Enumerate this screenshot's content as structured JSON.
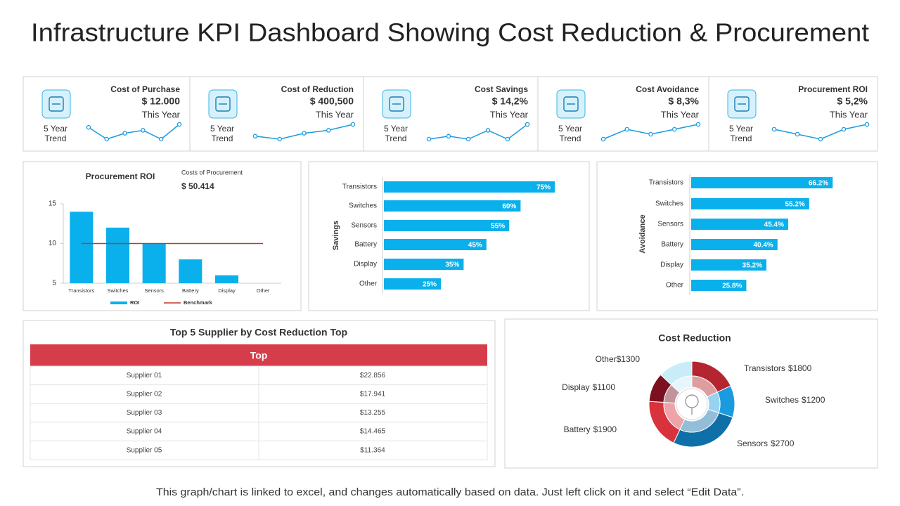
{
  "title": "Infrastructure KPI Dashboard Showing Cost Reduction & Procurement",
  "kpis": [
    {
      "name": "Cost of Purchase",
      "value": "$ 12.000",
      "period": "This Year",
      "trend_label": "5 Year Trend",
      "trend": [
        6,
        2,
        4,
        5,
        2,
        7
      ]
    },
    {
      "name": "Cost of Reduction",
      "value": "$ 400,500",
      "period": "This Year",
      "trend_label": "5 Year Trend",
      "trend": [
        3,
        2,
        4,
        5,
        7
      ]
    },
    {
      "name": "Cost Savings",
      "value": "$ 14,2%",
      "period": "This Year",
      "trend_label": "5 Year Trend",
      "trend": [
        3,
        4,
        3,
        6,
        3,
        8
      ]
    },
    {
      "name": "Cost Avoidance",
      "value": "$ 8,3%",
      "period": "This Year",
      "trend_label": "5 Year Trend",
      "trend": [
        2,
        6,
        4,
        6,
        8
      ]
    },
    {
      "name": "Procurement ROI",
      "value": "$ 5,2%",
      "period": "This Year",
      "trend_label": "5 Year Trend",
      "trend": [
        5,
        4,
        3,
        5,
        6
      ]
    }
  ],
  "chart_data": [
    {
      "type": "bar",
      "title": "Procurement ROI",
      "subtitle": "Costs of Procurement",
      "annotation": "$ 50.414",
      "categories": [
        "Transistors",
        "Switches",
        "Sensors",
        "Battery",
        "Display",
        "Other"
      ],
      "series": [
        {
          "name": "ROI",
          "color": "#0ab0ec",
          "values": [
            14,
            12,
            10,
            8,
            6,
            null
          ]
        },
        {
          "name": "Benchmark",
          "type": "line",
          "color": "#c0392b",
          "values": [
            10,
            10,
            10,
            10,
            10,
            10
          ]
        }
      ],
      "ylim": [
        5,
        15
      ],
      "yticks": [
        5,
        10,
        15
      ],
      "legend": "bottom"
    },
    {
      "type": "hbar",
      "ylabel": "Savings",
      "categories": [
        "Transistors",
        "Switches",
        "Sensors",
        "Battery",
        "Display",
        "Other"
      ],
      "values": [
        75,
        60,
        55,
        45,
        35,
        25
      ],
      "value_labels": [
        "75%",
        "60%",
        "55%",
        "45%",
        "35%",
        "25%"
      ],
      "color": "#0ab0ec",
      "xlim": [
        0,
        100
      ]
    },
    {
      "type": "hbar",
      "ylabel": "Avoidance",
      "categories": [
        "Transistors",
        "Switches",
        "Sensors",
        "Battery",
        "Display",
        "Other"
      ],
      "values": [
        66.2,
        55.2,
        45.4,
        40.4,
        35.2,
        25.8
      ],
      "value_labels": [
        "66.2%",
        "55.2%",
        "45.4%",
        "40.4%",
        "35.2%",
        "25.8%"
      ],
      "color": "#0ab0ec",
      "xlim": [
        0,
        100
      ]
    },
    {
      "type": "pie",
      "donut": true,
      "title": "Cost Reduction",
      "categories": [
        "Transistors",
        "Switches",
        "Sensors",
        "Battery",
        "Display",
        "Other"
      ],
      "values": [
        1800,
        1200,
        2700,
        1900,
        1100,
        1300
      ],
      "value_labels": [
        "$1800",
        "$1200",
        "$2700",
        "$1900",
        "$1100",
        "$1300"
      ],
      "colors": [
        "#b5252f",
        "#1a9be0",
        "#0f6fa8",
        "#d8323c",
        "#7a1020",
        "#c9ecf9"
      ]
    }
  ],
  "table": {
    "title": "Top 5 Supplier by Cost Reduction Top",
    "header": "Top",
    "rows": [
      [
        "Supplier 01",
        "$22.856"
      ],
      [
        "Supplier 02",
        "$17.941"
      ],
      [
        "Supplier 03",
        "$13.255"
      ],
      [
        "Supplier 04",
        "$14.465"
      ],
      [
        "Supplier 05",
        "$11.364"
      ]
    ]
  },
  "footer": "This graph/chart is linked to excel, and changes automatically  based on data. Just left click on it and select “Edit Data”."
}
